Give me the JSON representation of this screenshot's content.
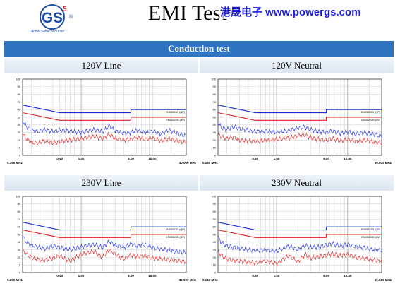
{
  "header": {
    "title": "EMI  Test",
    "watermark": "港晟电子  www.powergs.com",
    "logo_caption": "Global Semiconductor",
    "logo_mark": "GS",
    "logo_number": "5",
    "section_title": "Conduction test"
  },
  "colors": {
    "header_bar": "#2f74c0",
    "limit_qp": "#1a2fd6",
    "limit_av": "#e02020",
    "trace_peak": "#2030e0",
    "trace_avg": "#e02020"
  },
  "chart_data": [
    {
      "type": "line",
      "title": "120V Line",
      "xscale": "log",
      "xlim": [
        0.15,
        30
      ],
      "ylim": [
        0,
        100
      ],
      "yticks": [
        0,
        10,
        20,
        30,
        40,
        50,
        60,
        70,
        80,
        90,
        100
      ],
      "xtick_labels": [
        "0.150 MHz",
        "0.50",
        "1.00",
        "5.00",
        "10.00",
        "30.000 MHz"
      ],
      "legend": [
        "EN55022B (QP)",
        "EN55022B (AV)"
      ],
      "series": [
        {
          "name": "EN55022B (QP)",
          "x": [
            0.15,
            0.5,
            0.5,
            5,
            5,
            30
          ],
          "y": [
            66,
            56,
            56,
            56,
            60,
            60
          ]
        },
        {
          "name": "EN55022B (AV)",
          "x": [
            0.15,
            0.5,
            0.5,
            5,
            5,
            30
          ],
          "y": [
            56,
            46,
            46,
            46,
            50,
            50
          ]
        },
        {
          "x": [
            0.15,
            0.17,
            0.2,
            0.25,
            0.3,
            0.4,
            0.5,
            0.7,
            1,
            1.5,
            2,
            2.5,
            3,
            4,
            5,
            6,
            8,
            10,
            13,
            17,
            20,
            25,
            30
          ],
          "y": [
            45,
            38,
            33,
            31,
            34,
            31,
            33,
            32,
            30,
            34,
            31,
            39,
            32,
            29,
            30,
            33,
            30,
            32,
            28,
            33,
            31,
            27,
            26
          ]
        },
        {
          "x": [
            0.15,
            0.17,
            0.2,
            0.25,
            0.3,
            0.4,
            0.5,
            0.7,
            1,
            1.5,
            2,
            2.5,
            3,
            4,
            5,
            6,
            8,
            10,
            13,
            17,
            20,
            25,
            30
          ],
          "y": [
            28,
            22,
            17,
            16,
            19,
            16,
            18,
            20,
            22,
            25,
            22,
            28,
            22,
            20,
            21,
            24,
            21,
            23,
            19,
            22,
            20,
            18,
            17
          ]
        }
      ]
    },
    {
      "type": "line",
      "title": "120V Neutral",
      "xscale": "log",
      "xlim": [
        0.15,
        30
      ],
      "ylim": [
        0,
        100
      ],
      "yticks": [
        0,
        10,
        20,
        30,
        40,
        50,
        60,
        70,
        80,
        90,
        100
      ],
      "xtick_labels": [
        "0.150 MHz",
        "0.50",
        "1.00",
        "5.00",
        "10.00",
        "30.000 MHz"
      ],
      "legend": [
        "EN55022B (QP)",
        "EN55022B (AV)"
      ],
      "series": [
        {
          "name": "EN55022B (QP)",
          "x": [
            0.15,
            0.5,
            0.5,
            5,
            5,
            30
          ],
          "y": [
            66,
            56,
            56,
            56,
            60,
            60
          ]
        },
        {
          "name": "EN55022B (AV)",
          "x": [
            0.15,
            0.5,
            0.5,
            5,
            5,
            30
          ],
          "y": [
            56,
            46,
            46,
            46,
            50,
            50
          ]
        },
        {
          "x": [
            0.15,
            0.17,
            0.2,
            0.25,
            0.3,
            0.4,
            0.5,
            0.7,
            1,
            1.5,
            2,
            2.5,
            3,
            4,
            5,
            6,
            8,
            10,
            13,
            17,
            20,
            25,
            30
          ],
          "y": [
            42,
            36,
            34,
            38,
            35,
            33,
            31,
            32,
            30,
            33,
            36,
            37,
            34,
            31,
            30,
            32,
            29,
            31,
            28,
            30,
            29,
            27,
            25
          ]
        },
        {
          "x": [
            0.15,
            0.17,
            0.2,
            0.25,
            0.3,
            0.4,
            0.5,
            0.7,
            1,
            1.5,
            2,
            2.5,
            3,
            4,
            5,
            6,
            8,
            10,
            13,
            17,
            20,
            25,
            30
          ],
          "y": [
            27,
            24,
            22,
            24,
            20,
            19,
            18,
            20,
            21,
            23,
            26,
            27,
            23,
            21,
            20,
            22,
            19,
            21,
            18,
            20,
            19,
            17,
            16
          ]
        }
      ]
    },
    {
      "type": "line",
      "title": "230V Line",
      "xscale": "log",
      "xlim": [
        0.15,
        30
      ],
      "ylim": [
        0,
        100
      ],
      "yticks": [
        0,
        10,
        20,
        30,
        40,
        50,
        60,
        70,
        80,
        90,
        100
      ],
      "xtick_labels": [
        "0.150 MHz",
        "0.50",
        "1.00",
        "5.00",
        "10.00",
        "30.000 MHz"
      ],
      "legend": [
        "EN55022B (QP)",
        "EN55022B (AV)"
      ],
      "series": [
        {
          "name": "EN55022B (QP)",
          "x": [
            0.15,
            0.5,
            0.5,
            5,
            5,
            30
          ],
          "y": [
            66,
            56,
            56,
            56,
            60,
            60
          ]
        },
        {
          "name": "EN55022B (AV)",
          "x": [
            0.15,
            0.5,
            0.5,
            5,
            5,
            30
          ],
          "y": [
            56,
            46,
            46,
            46,
            50,
            50
          ]
        },
        {
          "x": [
            0.15,
            0.17,
            0.2,
            0.25,
            0.3,
            0.4,
            0.5,
            0.7,
            1,
            1.5,
            2,
            2.5,
            3,
            4,
            5,
            6,
            8,
            10,
            13,
            17,
            20,
            25,
            30
          ],
          "y": [
            48,
            40,
            36,
            34,
            31,
            35,
            33,
            30,
            34,
            37,
            33,
            41,
            36,
            33,
            38,
            35,
            37,
            33,
            31,
            30,
            28,
            27,
            26
          ]
        },
        {
          "x": [
            0.15,
            0.17,
            0.2,
            0.25,
            0.3,
            0.4,
            0.5,
            0.7,
            1,
            1.5,
            2,
            2.5,
            3,
            4,
            5,
            6,
            8,
            10,
            13,
            17,
            20,
            25,
            30
          ],
          "y": [
            30,
            24,
            20,
            17,
            16,
            19,
            22,
            15,
            24,
            28,
            20,
            30,
            24,
            18,
            23,
            21,
            22,
            19,
            18,
            17,
            16,
            15,
            14
          ]
        }
      ]
    },
    {
      "type": "line",
      "title": "230V Neutral",
      "xscale": "log",
      "xlim": [
        0.15,
        30
      ],
      "ylim": [
        0,
        100
      ],
      "yticks": [
        0,
        10,
        20,
        30,
        40,
        50,
        60,
        70,
        80,
        90,
        100
      ],
      "xtick_labels": [
        "0.150 MHz",
        "0.50",
        "1.00",
        "5.00",
        "10.00",
        "30.000 MHz"
      ],
      "legend": [
        "EN55022B (QP)",
        "EN55022B (AV)"
      ],
      "series": [
        {
          "name": "EN55022B (QP)",
          "x": [
            0.15,
            0.5,
            0.5,
            5,
            5,
            30
          ],
          "y": [
            66,
            56,
            56,
            56,
            60,
            60
          ]
        },
        {
          "name": "EN55022B (AV)",
          "x": [
            0.15,
            0.5,
            0.5,
            5,
            5,
            30
          ],
          "y": [
            56,
            46,
            46,
            46,
            50,
            50
          ]
        },
        {
          "x": [
            0.15,
            0.17,
            0.2,
            0.25,
            0.3,
            0.4,
            0.5,
            0.7,
            1,
            1.5,
            2,
            2.5,
            3,
            4,
            5,
            6,
            8,
            10,
            13,
            17,
            20,
            25,
            30
          ],
          "y": [
            46,
            39,
            35,
            33,
            32,
            30,
            29,
            30,
            28,
            35,
            30,
            36,
            33,
            34,
            36,
            38,
            35,
            37,
            34,
            33,
            31,
            30,
            29
          ]
        },
        {
          "x": [
            0.15,
            0.17,
            0.2,
            0.25,
            0.3,
            0.4,
            0.5,
            0.7,
            1,
            1.5,
            2,
            2.5,
            3,
            4,
            5,
            6,
            8,
            10,
            13,
            17,
            20,
            25,
            30
          ],
          "y": [
            28,
            22,
            18,
            16,
            15,
            14,
            13,
            15,
            12,
            22,
            14,
            24,
            19,
            21,
            23,
            25,
            22,
            24,
            20,
            19,
            17,
            16,
            15
          ]
        }
      ]
    }
  ]
}
